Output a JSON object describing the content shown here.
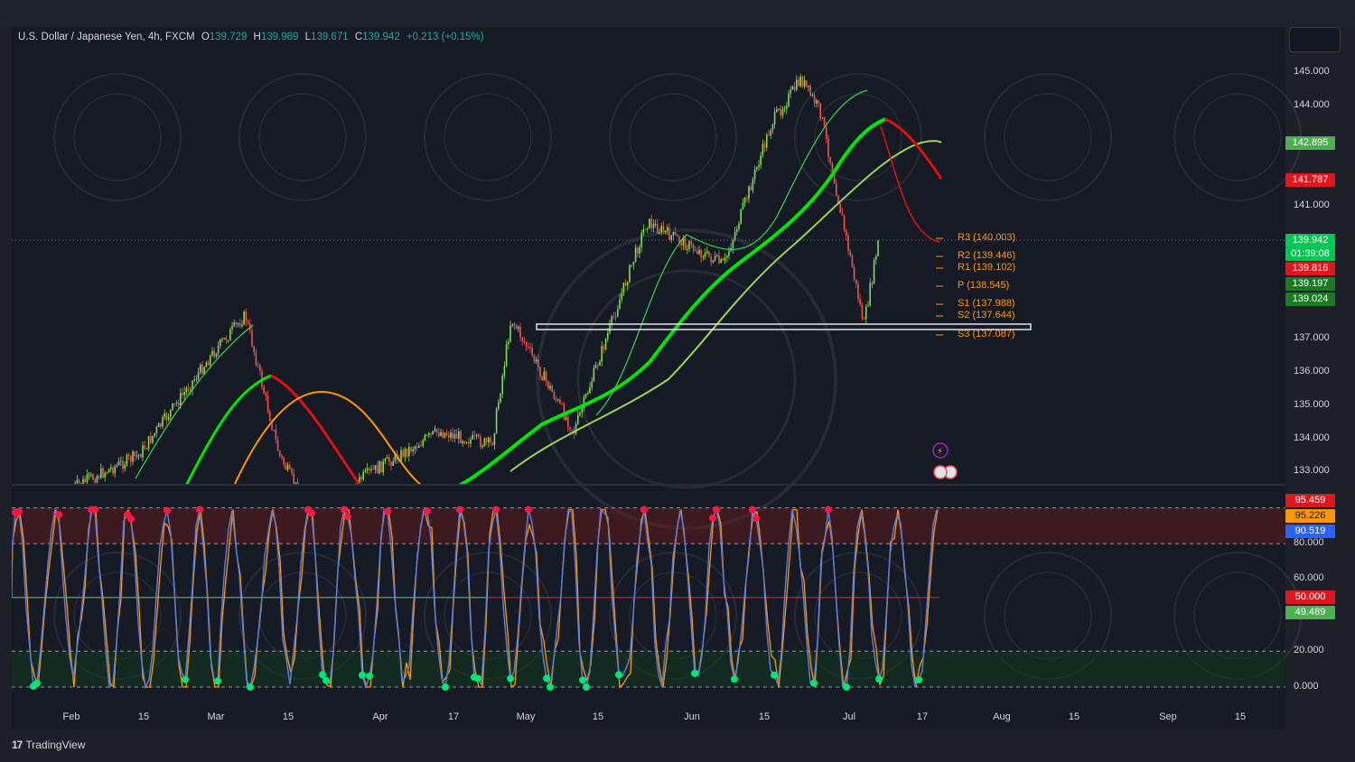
{
  "legend": {
    "symbol": "U.S. Dollar / Japanese Yen, 4h, FXCM",
    "o_label": "O",
    "o_val": "139.729",
    "h_label": "H",
    "h_val": "139.989",
    "l_label": "L",
    "l_val": "139.671",
    "c_label": "C",
    "c_val": "139.942",
    "change": "+0.213 (+0.15%)"
  },
  "price_axis": [
    "145.000",
    "144.000",
    "141.000",
    "137.000",
    "136.000",
    "135.000",
    "134.000",
    "133.000"
  ],
  "osc_axis": [
    "80.000",
    "60.000",
    "20.000",
    "0.000"
  ],
  "price_badges": [
    {
      "text": "142.895",
      "color": "#4caf50"
    },
    {
      "text": "141.787",
      "color": "#e0161e"
    },
    {
      "text": "139.942",
      "color": "#00c853"
    },
    {
      "text": "01:39:08",
      "color": "#00c853"
    },
    {
      "text": "139.816",
      "color": "#e0161e"
    },
    {
      "text": "139.197",
      "color": "#1b7b24"
    },
    {
      "text": "139.024",
      "color": "#1b7b24"
    }
  ],
  "osc_badges": [
    {
      "text": "95.459",
      "color": "#e0161e"
    },
    {
      "text": "95.226",
      "color": "#ff9800"
    },
    {
      "text": "90.519",
      "color": "#2962ff"
    },
    {
      "text": "50.000",
      "color": "#e0161e"
    },
    {
      "text": "49.489",
      "color": "#4caf50"
    }
  ],
  "pivots": [
    {
      "label": "R3 (140.003)"
    },
    {
      "label": "R2 (139.446)"
    },
    {
      "label": "R1 (139.102)"
    },
    {
      "label": "P (138.545)"
    },
    {
      "label": "S1 (137.988)"
    },
    {
      "label": "S2 (137.644)"
    },
    {
      "label": "S3 (137.087)"
    }
  ],
  "time_axis": [
    "Feb",
    "15",
    "Mar",
    "15",
    "Apr",
    "17",
    "May",
    "15",
    "Jun",
    "15",
    "Jul",
    "17",
    "Aug",
    "15",
    "Sep",
    "15"
  ],
  "brand": "TradingView",
  "colors": {
    "up": "#26a69a",
    "down": "#ef5350",
    "ma_green": "#00e600",
    "ma_red": "#e01010",
    "ma_orange": "#ff9800"
  },
  "chart_data": {
    "type": "candlestick",
    "instrument": "U.S. Dollar / Japanese Yen",
    "interval": "4h",
    "ylim": [
      132.6,
      145.4
    ],
    "x_ticks": [
      "Feb",
      "15",
      "Mar",
      "15",
      "Apr",
      "17",
      "May",
      "15",
      "Jun",
      "15",
      "Jul",
      "17",
      "Aug",
      "15",
      "Sep",
      "15"
    ],
    "close_path": [
      {
        "x": "Feb",
        "y": 132.5
      },
      {
        "x": "15 Feb",
        "y": 133.5
      },
      {
        "x": "Mar",
        "y": 136.5
      },
      {
        "x": "Mar 8",
        "y": 137.7
      },
      {
        "x": "15 Mar",
        "y": 133.5
      },
      {
        "x": "Mar 24",
        "y": 131.0
      },
      {
        "x": "Apr",
        "y": 132.8
      },
      {
        "x": "17 Apr",
        "y": 134.2
      },
      {
        "x": "Apr 28",
        "y": 133.8
      },
      {
        "x": "May 2",
        "y": 137.6
      },
      {
        "x": "15 May",
        "y": 134.2
      },
      {
        "x": "May 30",
        "y": 140.5
      },
      {
        "x": "15 Jun",
        "y": 139.2
      },
      {
        "x": "Jun 25",
        "y": 143.5
      },
      {
        "x": "Jul",
        "y": 144.8
      },
      {
        "x": "Jul 5",
        "y": 143.8
      },
      {
        "x": "Jul 14",
        "y": 137.4
      },
      {
        "x": "17 Jul",
        "y": 139.942
      }
    ],
    "moving_average_last": {
      "green_ma": 142.895,
      "red_ma": 141.787,
      "ma_3": 139.816,
      "ma_4": 139.197,
      "ma_5": 139.024
    },
    "pivots": {
      "R3": 140.003,
      "R2": 139.446,
      "R1": 139.102,
      "P": 138.545,
      "S1": 137.988,
      "S2": 137.644,
      "S3": 137.087
    },
    "support_zone": [
      137.25,
      137.45
    ],
    "oscillator": {
      "ylim": [
        0,
        100
      ],
      "overbought": 80,
      "oversold": 20,
      "midline": 50,
      "last_values": {
        "k_red": 95.459,
        "k_orange": 95.226,
        "d_blue": 90.519,
        "midline": 50.0,
        "green": 49.489
      }
    }
  }
}
